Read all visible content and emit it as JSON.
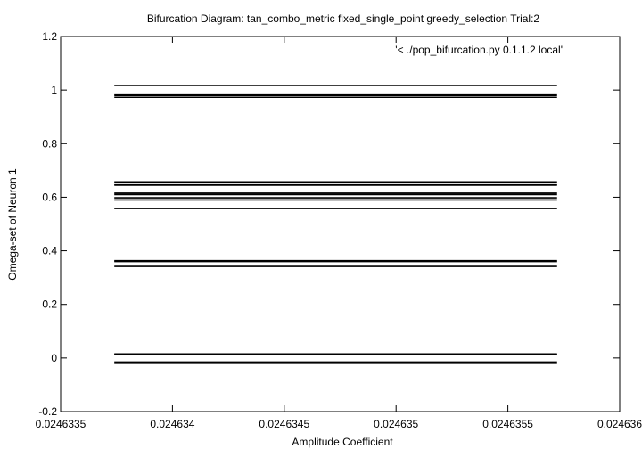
{
  "chart_data": {
    "type": "line",
    "title": "Bifurcation Diagram: tan_combo_metric fixed_single_point greedy_selection Trial:2",
    "xlabel": "Amplitude Coefficient",
    "ylabel": "Omega-set of Neuron 1",
    "xlim": [
      0.0246335,
      0.024636
    ],
    "ylim": [
      -0.2,
      1.2
    ],
    "x_ticks": [
      "0.0246335",
      "0.024634",
      "0.0246345",
      "0.024635",
      "0.0246355",
      "0.024636"
    ],
    "y_ticks": [
      "-0.2",
      "0",
      "0.2",
      "0.4",
      "0.6",
      "0.8",
      "1",
      "1.2"
    ],
    "x_tick_values": [
      0.0246335,
      0.024634,
      0.0246345,
      0.024635,
      0.0246355,
      0.024636
    ],
    "y_tick_values": [
      -0.2,
      0,
      0.2,
      0.4,
      0.6,
      0.8,
      1.0,
      1.2
    ],
    "series": [
      {
        "name": "'< ./pop_bifurcation.py 0.1.1.2 local'",
        "x_range": [
          0.02463374,
          0.02463572
        ],
        "omega_values": [
          1.017,
          0.985,
          0.98,
          0.973,
          0.657,
          0.648,
          0.645,
          0.615,
          0.61,
          0.598,
          0.59,
          0.558,
          0.363,
          0.36,
          0.342,
          0.015,
          0.013,
          -0.015,
          -0.02
        ],
        "color": "#000000"
      }
    ],
    "grid": false,
    "legend_position": "top-right"
  }
}
